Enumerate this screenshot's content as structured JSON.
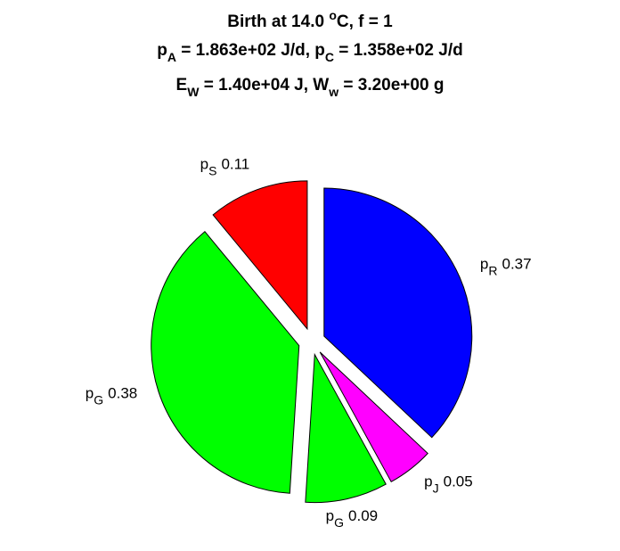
{
  "chart_data": {
    "type": "pie",
    "title": [
      [
        {
          "text": "Birth at 14.0 "
        },
        {
          "text": "o",
          "script": "sup"
        },
        {
          "text": "C, f = 1"
        }
      ],
      [
        {
          "text": "p"
        },
        {
          "text": "A",
          "script": "sub"
        },
        {
          "text": " = 1.863e+02 J/d, p"
        },
        {
          "text": "C",
          "script": "sub"
        },
        {
          "text": " = 1.358e+02 J/d"
        }
      ],
      [
        {
          "text": "E"
        },
        {
          "text": "W",
          "script": "sub"
        },
        {
          "text": " = 1.40e+04 J, W"
        },
        {
          "text": "w",
          "script": "sub"
        },
        {
          "text": " = 3.20e+00 g"
        }
      ]
    ],
    "categories": [
      [
        "p",
        "R"
      ],
      [
        "p",
        "J"
      ],
      [
        "p",
        "G"
      ],
      [
        "p",
        "G"
      ],
      [
        "p",
        "S"
      ]
    ],
    "values": [
      0.37,
      0.05,
      0.09,
      0.38,
      0.11
    ],
    "colors": [
      "#0000ff",
      "#ff00ff",
      "#00ff00",
      "#00ff00",
      "#ff0000"
    ],
    "explode": true
  }
}
